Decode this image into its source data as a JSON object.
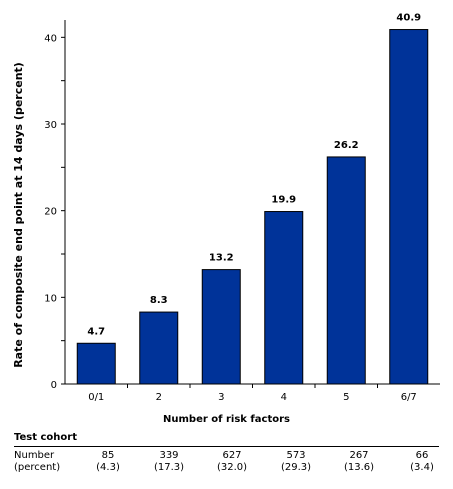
{
  "chart_data": {
    "type": "bar",
    "categories": [
      "0/1",
      "2",
      "3",
      "4",
      "5",
      "6/7"
    ],
    "values": [
      4.7,
      8.3,
      13.2,
      19.9,
      26.2,
      40.9
    ],
    "data_labels": [
      "4.7",
      "8.3",
      "13.2",
      "19.9",
      "26.2",
      "40.9"
    ],
    "title": "",
    "xlabel": "Number of risk factors",
    "ylabel": "Rate of composite end point at 14 days (percent)",
    "ylim": [
      0,
      42
    ],
    "yticks": [
      0,
      10,
      20,
      30,
      40
    ],
    "grid": false,
    "bar_color": "#003399"
  },
  "table": {
    "title": "Test cohort",
    "row_label_line1": "Number",
    "row_label_line2": "(percent)",
    "numbers": [
      "85",
      "339",
      "627",
      "573",
      "267",
      "66"
    ],
    "percents": [
      "(4.3)",
      "(17.3)",
      "(32.0)",
      "(29.3)",
      "(13.6)",
      "(3.4)"
    ]
  }
}
